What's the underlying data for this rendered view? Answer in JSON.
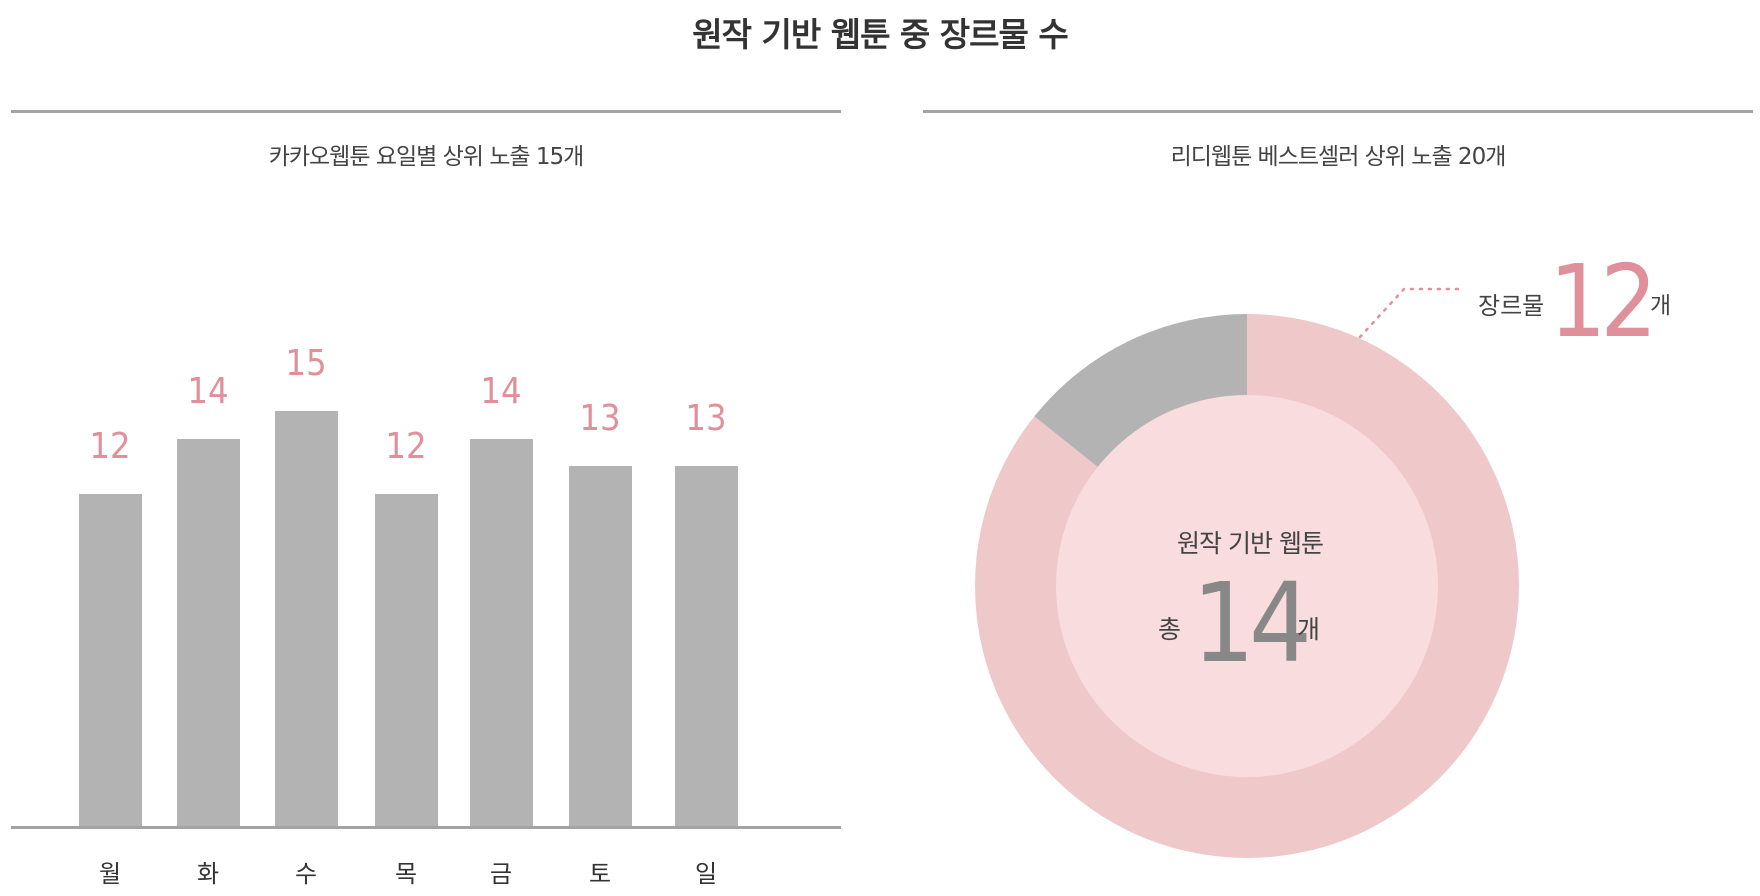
{
  "title": "원작 기반 웹툰 중 장르물 수",
  "chart_data": [
    {
      "type": "bar",
      "title": "카카오웹툰 요일별 상위 노출 15개",
      "categories": [
        "월",
        "화",
        "수",
        "목",
        "금",
        "토",
        "일"
      ],
      "values": [
        12,
        14,
        15,
        12,
        14,
        13,
        13
      ],
      "value_labels": [
        "12",
        "14",
        "15",
        "12",
        "14",
        "13",
        "13"
      ],
      "ylim": [
        0,
        15
      ],
      "bar_color": "#b3b3b3",
      "label_color": "#e0909a"
    },
    {
      "type": "pie",
      "title": "리디웹툰  베스트셀러 상위 노출 20개",
      "center": {
        "title": "원작 기반 웹툰",
        "prefix": "총",
        "total": "14",
        "unit": "개"
      },
      "slices": [
        {
          "label": "장르물",
          "value": 12,
          "color": "#efc8c9"
        },
        {
          "label": "",
          "value": 2,
          "color": "#b3b3b3"
        }
      ],
      "callout": {
        "label": "장르물",
        "value": "12",
        "unit": "개"
      },
      "inner_color": "#f9dcdd"
    }
  ]
}
